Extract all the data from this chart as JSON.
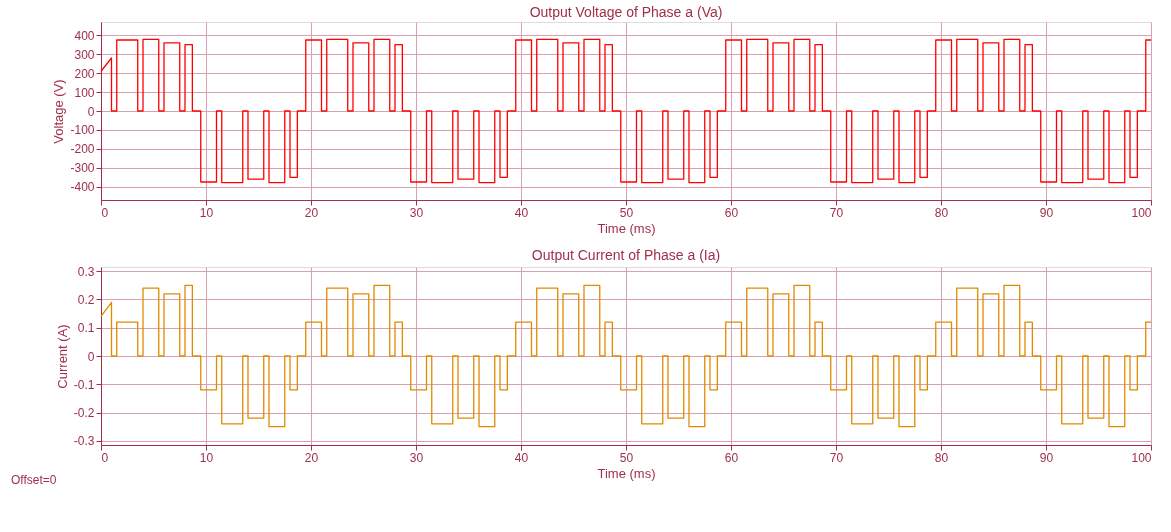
{
  "chart_data": [
    {
      "type": "line",
      "title": "Output Voltage of Phase a (Va)",
      "xlabel": "Time (ms)",
      "ylabel": "Voltage (V)",
      "xlim": [
        0,
        100
      ],
      "xticks": [
        0,
        10,
        20,
        30,
        40,
        50,
        60,
        70,
        80,
        90,
        100
      ],
      "ylim": [
        -470,
        470
      ],
      "yticks": [
        -400,
        -300,
        -200,
        -100,
        0,
        100,
        200,
        300,
        400
      ],
      "grid": true,
      "x": [
        0,
        1.0,
        1.0,
        1.5,
        1.5,
        3.5,
        3.5,
        4.0,
        4.0,
        5.5,
        5.5,
        6.0,
        6.0,
        7.5,
        7.5,
        8.0,
        8.0,
        8.7,
        8.7,
        9.5,
        9.5,
        11,
        11,
        11.5,
        11.5,
        13.5,
        13.5,
        14,
        14,
        15.5,
        15.5,
        16,
        16,
        17.5,
        17.5,
        18,
        18,
        18.7,
        18.7,
        19.5,
        19.5,
        21,
        21,
        21.5,
        21.5,
        23.5,
        23.5,
        24,
        24,
        25.5,
        25.5,
        26,
        26,
        27.5,
        27.5,
        28,
        28,
        28.7,
        28.7,
        29.5,
        29.5,
        31,
        31,
        31.5,
        31.5,
        33.5,
        33.5,
        34,
        34,
        35.5,
        35.5,
        36,
        36,
        37.5,
        37.5,
        38,
        38,
        38.7,
        38.7,
        39.5,
        39.5,
        41,
        41,
        41.5,
        41.5,
        43.5,
        43.5,
        44,
        44,
        45.5,
        45.5,
        46,
        46,
        47.5,
        47.5,
        48,
        48,
        48.7,
        48.7,
        49.5,
        49.5,
        51,
        51,
        51.5,
        51.5,
        53.5,
        53.5,
        54,
        54,
        55.5,
        55.5,
        56,
        56,
        57.5,
        57.5,
        58,
        58,
        58.7,
        58.7,
        59.5,
        59.5,
        61,
        61,
        61.5,
        61.5,
        63.5,
        63.5,
        64,
        64,
        65.5,
        65.5,
        66,
        66,
        67.5,
        67.5,
        68,
        68,
        68.7,
        68.7,
        69.5,
        69.5,
        71,
        71,
        71.5,
        71.5,
        73.5,
        73.5,
        74,
        74,
        75.5,
        75.5,
        76,
        76,
        77.5,
        77.5,
        78,
        78,
        78.7,
        78.7,
        79.5,
        79.5,
        81,
        81,
        81.5,
        81.5,
        83.5,
        83.5,
        84,
        84,
        85.5,
        85.5,
        86,
        86,
        87.5,
        87.5,
        88,
        88,
        88.7,
        88.7,
        89.5,
        89.5,
        91,
        91,
        91.5,
        91.5,
        93.5,
        93.5,
        94,
        94,
        95.5,
        95.5,
        96,
        96,
        97.5,
        97.5,
        98,
        98,
        98.7,
        98.7,
        99.5,
        99.5,
        100
      ],
      "series": [
        {
          "color": "#ff0000",
          "values": [
            210,
            280,
            0,
            0,
            375,
            375,
            0,
            0,
            378,
            378,
            0,
            0,
            360,
            360,
            0,
            0,
            350,
            350,
            0,
            0,
            -375,
            -375,
            0,
            0,
            -378,
            -378,
            0,
            0,
            -360,
            -360,
            0,
            0,
            -378,
            -378,
            0,
            0,
            -350,
            -350,
            0,
            0,
            375,
            375,
            0,
            0,
            378,
            378,
            0,
            0,
            360,
            360,
            0,
            0,
            378,
            378,
            0,
            0,
            350,
            350,
            0,
            0,
            -375,
            -375,
            0,
            0,
            -378,
            -378,
            0,
            0,
            -360,
            -360,
            0,
            0,
            -378,
            -378,
            0,
            0,
            -350,
            -350,
            0,
            0,
            375,
            375,
            0,
            0,
            378,
            378,
            0,
            0,
            360,
            360,
            0,
            0,
            378,
            378,
            0,
            0,
            350,
            350,
            0,
            0,
            -375,
            -375,
            0,
            0,
            -378,
            -378,
            0,
            0,
            -360,
            -360,
            0,
            0,
            -378,
            -378,
            0,
            0,
            -350,
            -350,
            0,
            0,
            375,
            375,
            0,
            0,
            378,
            378,
            0,
            0,
            360,
            360,
            0,
            0,
            378,
            378,
            0,
            0,
            350,
            350,
            0,
            0,
            -375,
            -375,
            0,
            0,
            -378,
            -378,
            0,
            0,
            -360,
            -360,
            0,
            0,
            -378,
            -378,
            0,
            0,
            -350,
            -350,
            0,
            0,
            375,
            375,
            0,
            0,
            378,
            378,
            0,
            0,
            360,
            360,
            0,
            0,
            378,
            378,
            0,
            0,
            350,
            350,
            0,
            0,
            -375,
            -375,
            0,
            0,
            -378,
            -378,
            0,
            0,
            -360,
            -360,
            0,
            0,
            -378,
            -378,
            0,
            0,
            -350,
            -350,
            0,
            0,
            375,
            375
          ]
        }
      ]
    },
    {
      "type": "line",
      "title": "Output Current of Phase a (Ia)",
      "xlabel": "Time (ms)",
      "ylabel": "Current (A)",
      "xlim": [
        0,
        100
      ],
      "xticks": [
        0,
        10,
        20,
        30,
        40,
        50,
        60,
        70,
        80,
        90,
        100
      ],
      "ylim": [
        -0.315,
        0.315
      ],
      "yticks": [
        -0.3,
        -0.2,
        -0.1,
        0,
        0.1,
        0.2,
        0.3
      ],
      "grid": true,
      "annotations": [
        "Offset=0"
      ],
      "x": [
        0,
        1.0,
        1.0,
        1.5,
        1.5,
        3.5,
        3.5,
        4.0,
        4.0,
        5.5,
        5.5,
        6.0,
        6.0,
        7.5,
        7.5,
        8.0,
        8.0,
        8.7,
        8.7,
        9.5,
        9.5,
        11,
        11,
        11.5,
        11.5,
        13.5,
        13.5,
        14,
        14,
        15.5,
        15.5,
        16,
        16,
        17.5,
        17.5,
        18,
        18,
        18.7,
        18.7,
        19.5,
        19.5,
        21,
        21,
        21.5,
        21.5,
        23.5,
        23.5,
        24,
        24,
        25.5,
        25.5,
        26,
        26,
        27.5,
        27.5,
        28,
        28,
        28.7,
        28.7,
        29.5,
        29.5,
        31,
        31,
        31.5,
        31.5,
        33.5,
        33.5,
        34,
        34,
        35.5,
        35.5,
        36,
        36,
        37.5,
        37.5,
        38,
        38,
        38.7,
        38.7,
        39.5,
        39.5,
        41,
        41,
        41.5,
        41.5,
        43.5,
        43.5,
        44,
        44,
        45.5,
        45.5,
        46,
        46,
        47.5,
        47.5,
        48,
        48,
        48.7,
        48.7,
        49.5,
        49.5,
        51,
        51,
        51.5,
        51.5,
        53.5,
        53.5,
        54,
        54,
        55.5,
        55.5,
        56,
        56,
        57.5,
        57.5,
        58,
        58,
        58.7,
        58.7,
        59.5,
        59.5,
        61,
        61,
        61.5,
        61.5,
        63.5,
        63.5,
        64,
        64,
        65.5,
        65.5,
        66,
        66,
        67.5,
        67.5,
        68,
        68,
        68.7,
        68.7,
        69.5,
        69.5,
        71,
        71,
        71.5,
        71.5,
        73.5,
        73.5,
        74,
        74,
        75.5,
        75.5,
        76,
        76,
        77.5,
        77.5,
        78,
        78,
        78.7,
        78.7,
        79.5,
        79.5,
        81,
        81,
        81.5,
        81.5,
        83.5,
        83.5,
        84,
        84,
        85.5,
        85.5,
        86,
        86,
        87.5,
        87.5,
        88,
        88,
        88.7,
        88.7,
        89.5,
        89.5,
        91,
        91,
        91.5,
        91.5,
        93.5,
        93.5,
        94,
        94,
        95.5,
        95.5,
        96,
        96,
        97.5,
        97.5,
        98,
        98,
        98.7,
        98.7,
        99.5,
        99.5,
        100
      ],
      "series": [
        {
          "color": "#e08a00",
          "values": [
            0.14,
            0.19,
            0,
            0,
            0.12,
            0.12,
            0,
            0,
            0.24,
            0.24,
            0,
            0,
            0.22,
            0.22,
            0,
            0,
            0.25,
            0.25,
            0,
            0,
            -0.12,
            -0.12,
            0,
            0,
            -0.24,
            -0.24,
            0,
            0,
            -0.22,
            -0.22,
            0,
            0,
            -0.25,
            -0.25,
            0,
            0,
            -0.12,
            -0.12,
            0,
            0,
            0.12,
            0.12,
            0,
            0,
            0.24,
            0.24,
            0,
            0,
            0.22,
            0.22,
            0,
            0,
            0.25,
            0.25,
            0,
            0,
            0.12,
            0.12,
            0,
            0,
            -0.12,
            -0.12,
            0,
            0,
            -0.24,
            -0.24,
            0,
            0,
            -0.22,
            -0.22,
            0,
            0,
            -0.25,
            -0.25,
            0,
            0,
            -0.12,
            -0.12,
            0,
            0,
            0.12,
            0.12,
            0,
            0,
            0.24,
            0.24,
            0,
            0,
            0.22,
            0.22,
            0,
            0,
            0.25,
            0.25,
            0,
            0,
            0.12,
            0.12,
            0,
            0,
            -0.12,
            -0.12,
            0,
            0,
            -0.24,
            -0.24,
            0,
            0,
            -0.22,
            -0.22,
            0,
            0,
            -0.25,
            -0.25,
            0,
            0,
            -0.12,
            -0.12,
            0,
            0,
            0.12,
            0.12,
            0,
            0,
            0.24,
            0.24,
            0,
            0,
            0.22,
            0.22,
            0,
            0,
            0.25,
            0.25,
            0,
            0,
            0.12,
            0.12,
            0,
            0,
            -0.12,
            -0.12,
            0,
            0,
            -0.24,
            -0.24,
            0,
            0,
            -0.22,
            -0.22,
            0,
            0,
            -0.25,
            -0.25,
            0,
            0,
            -0.12,
            -0.12,
            0,
            0,
            0.12,
            0.12,
            0,
            0,
            0.24,
            0.24,
            0,
            0,
            0.22,
            0.22,
            0,
            0,
            0.25,
            0.25,
            0,
            0,
            0.12,
            0.12,
            0,
            0,
            -0.12,
            -0.12,
            0,
            0,
            -0.24,
            -0.24,
            0,
            0,
            -0.22,
            -0.22,
            0,
            0,
            -0.25,
            -0.25,
            0,
            0,
            -0.12,
            -0.12,
            0,
            0,
            0.12,
            0.12
          ]
        }
      ]
    }
  ]
}
